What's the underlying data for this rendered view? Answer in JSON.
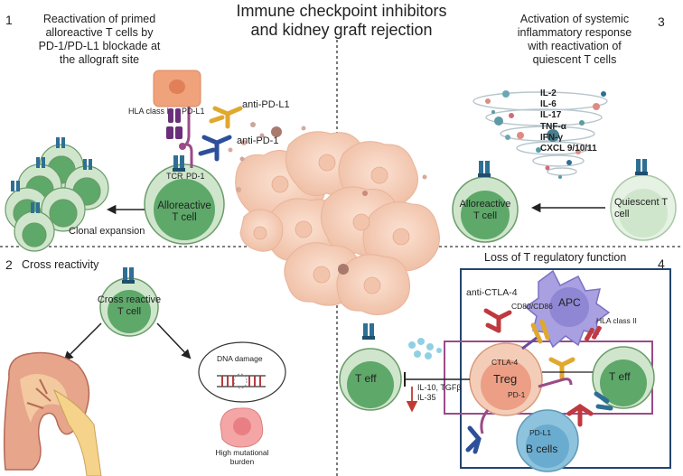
{
  "title": {
    "line1": "Immune checkpoint inhibitors",
    "line2": "and kidney graft rejection"
  },
  "q1": {
    "number": "1",
    "lines": [
      "Reactivation of primed",
      "alloreactive T cells by",
      "PD-1/PD-L1 blockade at",
      "the allograft site"
    ]
  },
  "q2": {
    "number": "2",
    "heading": "Cross reactivity"
  },
  "q3": {
    "number": "3",
    "lines": [
      "Activation of systemic",
      "inflammatory response",
      "with reactivation of",
      "quiescent T cells"
    ]
  },
  "q4": {
    "number": "4",
    "heading": "Loss of T regulatory function"
  },
  "labels": {
    "hla_class_1": "HLA class I",
    "pd_l1_top": "PD-L1",
    "anti_pd_l1": "anti-PD-L1",
    "anti_pd_1": "anti-PD-1",
    "tcr": "TCR",
    "pd_1_top": "PD-1",
    "alloreactive_cell_1": "Alloreactive",
    "alloreactive_cell_2": "T cell",
    "clonal_expansion": "Clonal expansion",
    "cross_reactive_1": "Cross reactive",
    "cross_reactive_2": "T cell",
    "dna_damage": "DNA damage",
    "high_mutational_1": "High mutational",
    "high_mutational_2": "burden",
    "cytokines": [
      "IL-2",
      "IL-6",
      "IL-17",
      "TNF-α",
      "IFN-γ",
      "CXCL 9/10/11"
    ],
    "quiescent_1": "Quiescent T",
    "quiescent_2": "cell",
    "anti_ctla4": "anti-CTLA-4",
    "cd80_cd86": "CD80/CD86",
    "apc": "APC",
    "hla_class_2": "HLA class II",
    "ctla4": "CTLA-4",
    "treg": "Treg",
    "pd_1_treg": "PD-1",
    "t_eff_left": "T eff",
    "t_eff_right": "T eff",
    "suppressive_cytokines_1": "IL-10, TGFβ",
    "suppressive_cytokines_2": "IL-35",
    "pd_l1_bcell": "PD-L1",
    "b_cells": "B cells"
  },
  "colors": {
    "tcell_outer": "#cfe6cc",
    "tcell_inner": "#5ea86a",
    "tumor": "#f5cdb8",
    "receptor_blue": "#2f6f94",
    "antibody_yellow": "#e0a82e",
    "antibody_red": "#c0393f",
    "antibody_navy": "#2d4f99",
    "apc_purple": "#a8a0e0",
    "bcell_blue": "#8ec3dd",
    "box_navy": "#24446e",
    "box_magenta": "#9a4b87"
  }
}
